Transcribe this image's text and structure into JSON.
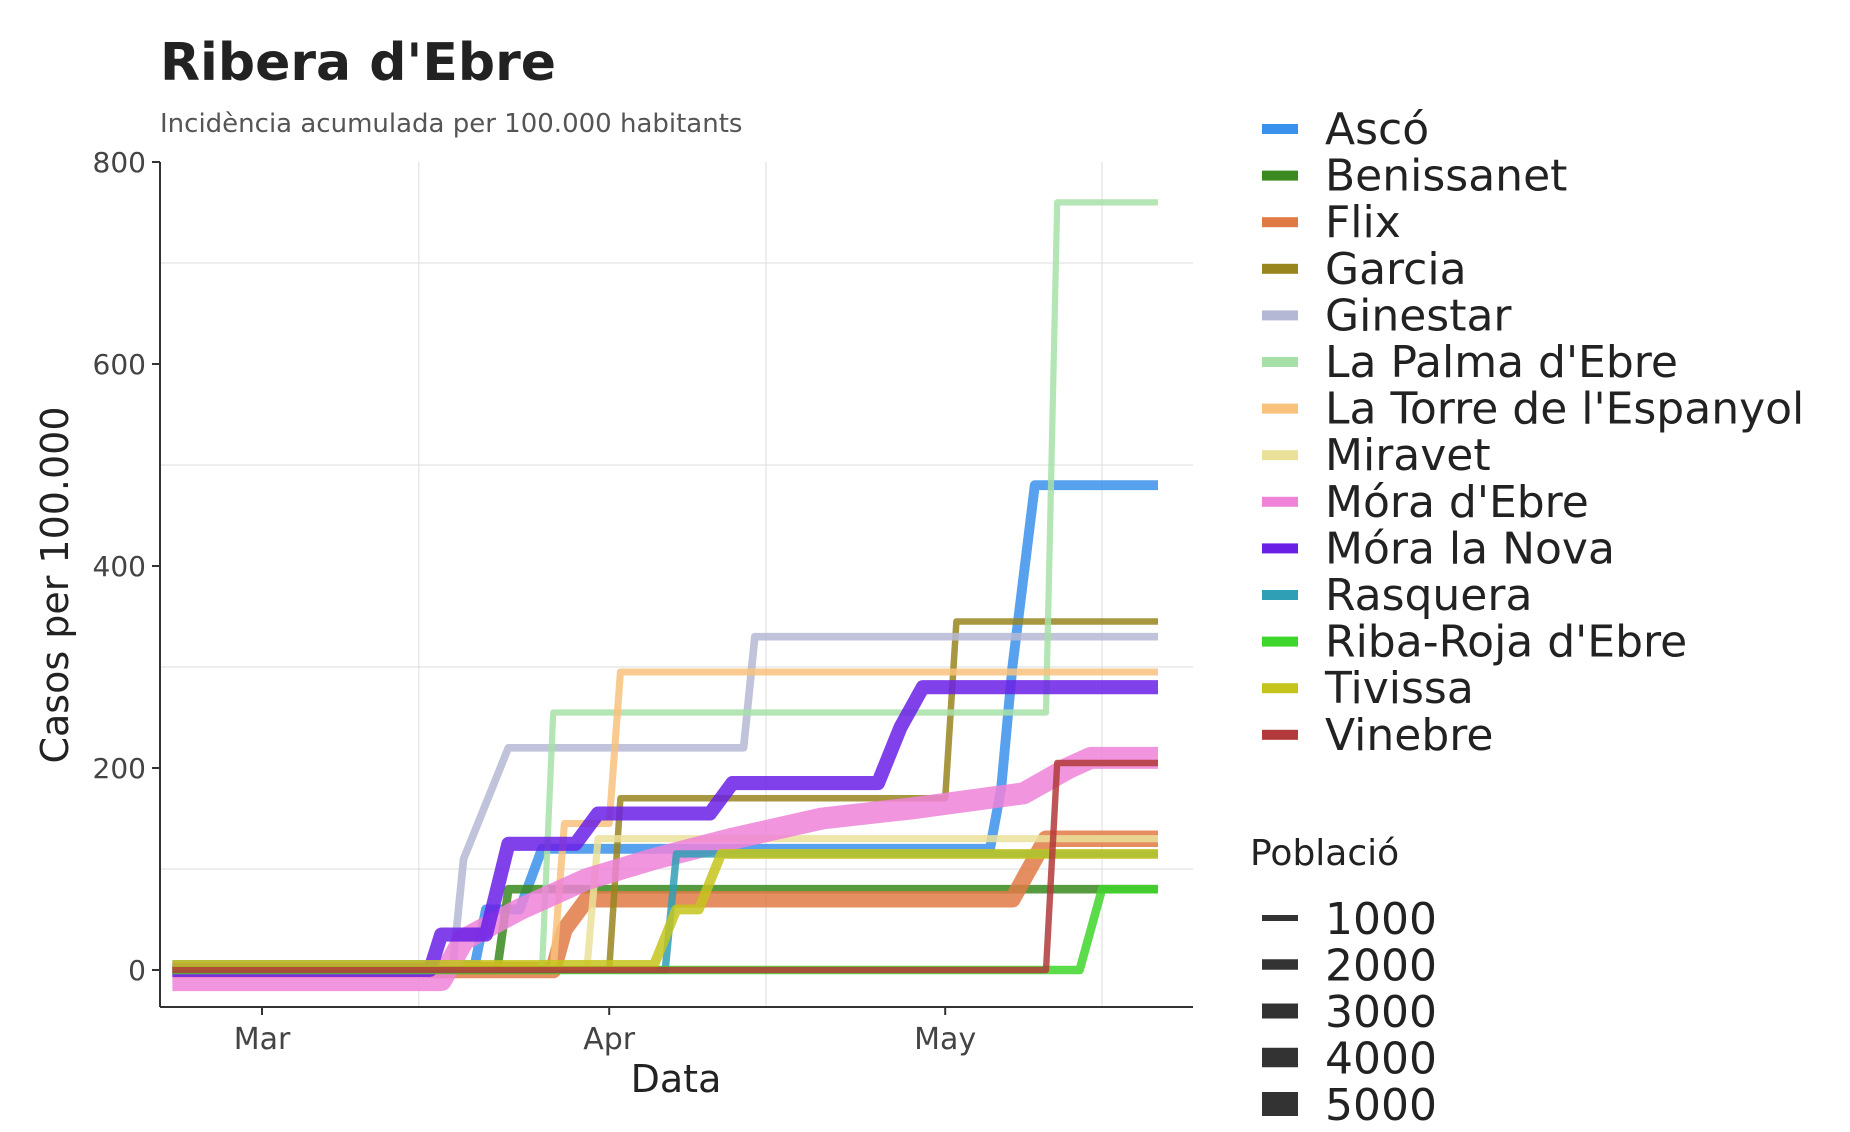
{
  "chart_data": {
    "type": "line",
    "title": "Ribera d'Ebre",
    "subtitle": "Incidència acumulada per 100.000 habitants",
    "xlabel": "Data",
    "ylabel": "Casos per 100.000",
    "x_ticks": [
      "Mar",
      "Apr",
      "May"
    ],
    "y_ticks": [
      "0",
      "200",
      "400",
      "600",
      "800"
    ],
    "ylim": [
      -40,
      800
    ],
    "grid": true,
    "legend_position": "right",
    "size_legend": {
      "title": "Població",
      "entries": [
        "1000",
        "2000",
        "3000",
        "4000",
        "5000"
      ]
    },
    "series": [
      {
        "name": "Ascó",
        "color": "#3a91eb",
        "population": 1600,
        "points": [
          [
            "2020-02-22",
            5
          ],
          [
            "2020-03-20",
            5
          ],
          [
            "2020-03-21",
            60
          ],
          [
            "2020-03-24",
            60
          ],
          [
            "2020-03-26",
            120
          ],
          [
            "2020-05-05",
            120
          ],
          [
            "2020-05-06",
            180
          ],
          [
            "2020-05-07",
            300
          ],
          [
            "2020-05-09",
            480
          ],
          [
            "2020-05-20",
            480
          ]
        ]
      },
      {
        "name": "Benissanet",
        "color": "#3a8a20",
        "population": 1200,
        "points": [
          [
            "2020-02-22",
            0
          ],
          [
            "2020-03-22",
            0
          ],
          [
            "2020-03-23",
            80
          ],
          [
            "2020-05-20",
            80
          ]
        ]
      },
      {
        "name": "Flix",
        "color": "#e07a45",
        "population": 3800,
        "points": [
          [
            "2020-02-22",
            0
          ],
          [
            "2020-03-27",
            0
          ],
          [
            "2020-03-28",
            40
          ],
          [
            "2020-03-30",
            70
          ],
          [
            "2020-05-07",
            70
          ],
          [
            "2020-05-10",
            130
          ],
          [
            "2020-05-20",
            130
          ]
        ]
      },
      {
        "name": "Garcia",
        "color": "#98851e",
        "population": 500,
        "points": [
          [
            "2020-02-22",
            0
          ],
          [
            "2020-04-01",
            0
          ],
          [
            "2020-04-02",
            170
          ],
          [
            "2020-05-01",
            170
          ],
          [
            "2020-05-02",
            345
          ],
          [
            "2020-05-20",
            345
          ]
        ]
      },
      {
        "name": "Ginestar",
        "color": "#b5b8d4",
        "population": 900,
        "points": [
          [
            "2020-02-22",
            0
          ],
          [
            "2020-03-18",
            0
          ],
          [
            "2020-03-19",
            110
          ],
          [
            "2020-03-23",
            220
          ],
          [
            "2020-04-13",
            220
          ],
          [
            "2020-04-14",
            330
          ],
          [
            "2020-05-20",
            330
          ]
        ]
      },
      {
        "name": "La Palma d'Ebre",
        "color": "#a6e0a8",
        "population": 400,
        "points": [
          [
            "2020-02-22",
            0
          ],
          [
            "2020-03-26",
            0
          ],
          [
            "2020-03-27",
            255
          ],
          [
            "2020-05-10",
            255
          ],
          [
            "2020-05-11",
            760
          ],
          [
            "2020-05-20",
            760
          ]
        ]
      },
      {
        "name": "La Torre de l'Espanyol",
        "color": "#f8c27d",
        "population": 700,
        "points": [
          [
            "2020-02-22",
            0
          ],
          [
            "2020-03-27",
            0
          ],
          [
            "2020-03-28",
            145
          ],
          [
            "2020-04-01",
            145
          ],
          [
            "2020-04-02",
            295
          ],
          [
            "2020-05-20",
            295
          ]
        ]
      },
      {
        "name": "Miravet",
        "color": "#ebe09a",
        "population": 700,
        "points": [
          [
            "2020-02-22",
            0
          ],
          [
            "2020-03-30",
            0
          ],
          [
            "2020-03-31",
            130
          ],
          [
            "2020-05-20",
            130
          ]
        ]
      },
      {
        "name": "Móra d'Ebre",
        "color": "#ef83d8",
        "population": 5600,
        "points": [
          [
            "2020-02-22",
            -10
          ],
          [
            "2020-03-17",
            -10
          ],
          [
            "2020-03-19",
            30
          ],
          [
            "2020-03-24",
            60
          ],
          [
            "2020-03-30",
            90
          ],
          [
            "2020-04-05",
            110
          ],
          [
            "2020-04-12",
            130
          ],
          [
            "2020-04-20",
            150
          ],
          [
            "2020-04-28",
            160
          ],
          [
            "2020-05-08",
            175
          ],
          [
            "2020-05-12",
            200
          ],
          [
            "2020-05-14",
            210
          ],
          [
            "2020-05-20",
            210
          ]
        ]
      },
      {
        "name": "Móra la Nova",
        "color": "#6a1fe6",
        "population": 3000,
        "points": [
          [
            "2020-02-22",
            0
          ],
          [
            "2020-03-16",
            0
          ],
          [
            "2020-03-17",
            35
          ],
          [
            "2020-03-21",
            35
          ],
          [
            "2020-03-23",
            125
          ],
          [
            "2020-03-29",
            125
          ],
          [
            "2020-03-31",
            155
          ],
          [
            "2020-04-10",
            155
          ],
          [
            "2020-04-12",
            185
          ],
          [
            "2020-04-25",
            185
          ],
          [
            "2020-04-27",
            240
          ],
          [
            "2020-04-29",
            280
          ],
          [
            "2020-05-20",
            280
          ]
        ]
      },
      {
        "name": "Rasquera",
        "color": "#2f9fb5",
        "population": 800,
        "points": [
          [
            "2020-02-22",
            0
          ],
          [
            "2020-04-06",
            0
          ],
          [
            "2020-04-07",
            115
          ],
          [
            "2020-05-20",
            115
          ]
        ]
      },
      {
        "name": "Riba-Roja d'Ebre",
        "color": "#3fd62c",
        "population": 1200,
        "points": [
          [
            "2020-02-22",
            0
          ],
          [
            "2020-05-13",
            0
          ],
          [
            "2020-05-15",
            80
          ],
          [
            "2020-05-20",
            80
          ]
        ]
      },
      {
        "name": "Tivissa",
        "color": "#c5c41c",
        "population": 1600,
        "points": [
          [
            "2020-02-22",
            5
          ],
          [
            "2020-04-05",
            5
          ],
          [
            "2020-04-07",
            60
          ],
          [
            "2020-04-09",
            60
          ],
          [
            "2020-04-11",
            115
          ],
          [
            "2020-05-20",
            115
          ]
        ]
      },
      {
        "name": "Vinebre",
        "color": "#b23a3a",
        "population": 450,
        "points": [
          [
            "2020-02-22",
            0
          ],
          [
            "2020-05-10",
            0
          ],
          [
            "2020-05-11",
            205
          ],
          [
            "2020-05-20",
            205
          ]
        ]
      }
    ]
  }
}
